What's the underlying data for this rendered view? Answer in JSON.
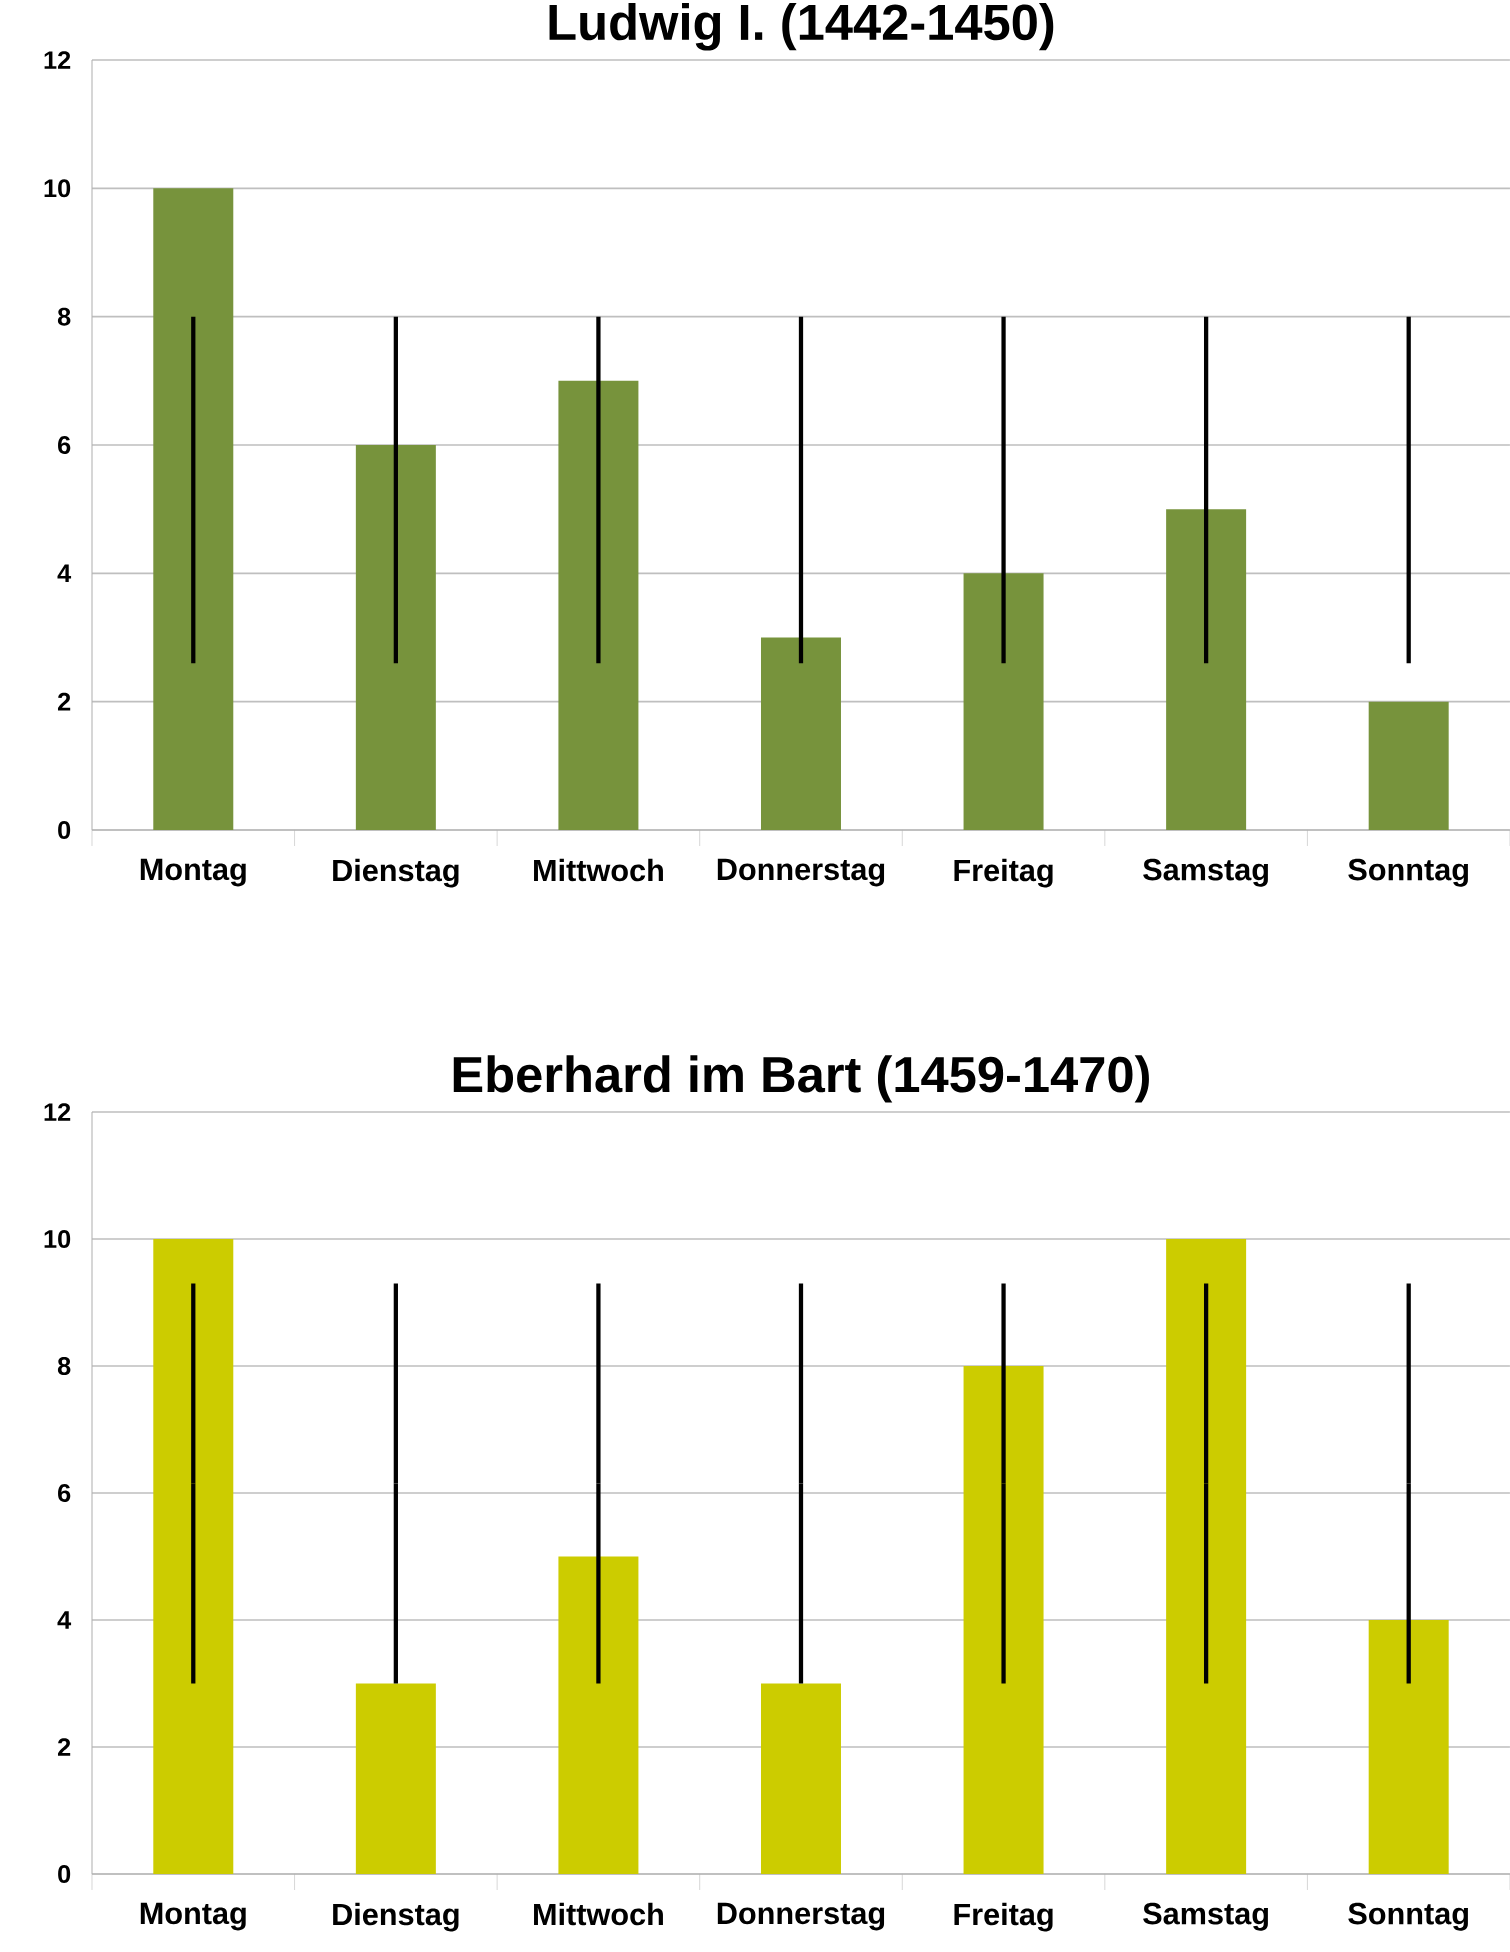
{
  "chart_data": [
    {
      "type": "bar",
      "title": "Ludwig I.  (1442-1450)",
      "categories": [
        "Montag",
        "Dienstag",
        "Mittwoch",
        "Donnerstag",
        "Freitag",
        "Samstag",
        "Sonntag"
      ],
      "values": [
        10,
        6,
        7,
        3,
        4,
        5,
        2
      ],
      "color": "#77933c",
      "errors": [
        [
          2.6,
          8
        ],
        [
          2.6,
          8
        ],
        [
          2.6,
          8
        ],
        [
          2.6,
          8
        ],
        [
          2.6,
          8
        ],
        [
          2.6,
          8
        ],
        [
          2.6,
          8
        ]
      ],
      "ylim": [
        0,
        12
      ],
      "yticks": [
        0,
        2,
        4,
        6,
        8,
        10,
        12
      ],
      "grid": "y"
    },
    {
      "type": "bar",
      "title": "Eberhard im Bart  (1459-1470)",
      "categories": [
        "Montag",
        "Dienstag",
        "Mittwoch",
        "Donnerstag",
        "Freitag",
        "Samstag",
        "Sonntag"
      ],
      "values": [
        10,
        3,
        5,
        3,
        8,
        10,
        4
      ],
      "color": "#cccc00",
      "errors": [
        [
          3,
          9.3
        ],
        [
          3,
          9.3
        ],
        [
          3,
          9.3
        ],
        [
          3,
          9.3
        ],
        [
          3,
          9.3
        ],
        [
          3,
          9.3
        ],
        [
          3,
          9.3
        ]
      ],
      "ylim": [
        0,
        12
      ],
      "yticks": [
        0,
        2,
        4,
        6,
        8,
        10,
        12
      ],
      "grid": "y"
    }
  ]
}
